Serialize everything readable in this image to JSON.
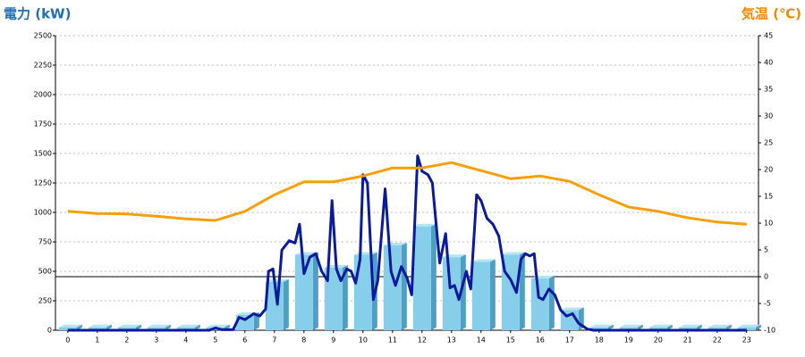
{
  "chart_data": {
    "type": "combo",
    "y_label": "電力 (kW)",
    "y2_label": "気温 (℃)",
    "y_label_color": "#1f6fb5",
    "y2_label_color": "#f08a00",
    "xlim": [
      -0.42,
      23.4
    ],
    "xticks": [
      0,
      1,
      2,
      3,
      4,
      5,
      6,
      7,
      8,
      9,
      10,
      11,
      12,
      13,
      14,
      15,
      16,
      17,
      18,
      19,
      20,
      21,
      22,
      23
    ],
    "ylim": [
      0,
      2500
    ],
    "yticks": [
      0,
      250,
      500,
      750,
      1000,
      1250,
      1500,
      1750,
      2000,
      2250,
      2500
    ],
    "y2lim": [
      -10,
      45
    ],
    "y2ticks": [
      -10,
      -5,
      0,
      5,
      10,
      15,
      20,
      25,
      30,
      35,
      40,
      45
    ],
    "grid": true,
    "series": [
      {
        "type": "bar",
        "color": "#87ceeb",
        "x": [
          0,
          1,
          2,
          3,
          4,
          5,
          6,
          7,
          8,
          9,
          10,
          11,
          12,
          13,
          14,
          15,
          16,
          17,
          18,
          19,
          20,
          21,
          22,
          23
        ],
        "values": [
          25,
          25,
          25,
          25,
          25,
          25,
          130,
          410,
          640,
          530,
          640,
          720,
          880,
          620,
          580,
          640,
          440,
          170,
          25,
          25,
          25,
          25,
          25,
          25
        ]
      },
      {
        "type": "line",
        "color": "#0a1a9a",
        "x": [
          0,
          4.8,
          5.0,
          5.2,
          5.6,
          5.8,
          6.0,
          6.3,
          6.5,
          6.7,
          6.8,
          6.95,
          7.1,
          7.25,
          7.5,
          7.7,
          7.85,
          8.0,
          8.2,
          8.4,
          8.6,
          8.8,
          8.95,
          9.1,
          9.25,
          9.45,
          9.6,
          9.75,
          9.9,
          10.0,
          10.15,
          10.35,
          10.5,
          10.75,
          10.95,
          11.1,
          11.3,
          11.5,
          11.65,
          11.85,
          12.0,
          12.2,
          12.35,
          12.6,
          12.8,
          12.95,
          13.1,
          13.25,
          13.5,
          13.65,
          13.85,
          14.0,
          14.2,
          14.4,
          14.6,
          14.8,
          15.0,
          15.2,
          15.35,
          15.5,
          15.65,
          15.8,
          15.95,
          16.1,
          16.3,
          16.5,
          16.7,
          16.9,
          17.1,
          17.3,
          17.6,
          17.8,
          23
        ],
        "values": [
          0,
          0,
          20,
          5,
          5,
          110,
          90,
          140,
          120,
          180,
          500,
          520,
          220,
          680,
          760,
          740,
          900,
          480,
          620,
          650,
          500,
          420,
          1100,
          520,
          420,
          520,
          500,
          400,
          600,
          1320,
          1250,
          260,
          420,
          1200,
          500,
          380,
          540,
          440,
          300,
          1480,
          1350,
          1320,
          1250,
          570,
          820,
          360,
          380,
          260,
          500,
          350,
          1150,
          1100,
          950,
          900,
          800,
          500,
          430,
          320,
          600,
          650,
          630,
          650,
          280,
          260,
          350,
          300,
          170,
          120,
          140,
          60,
          10,
          0,
          0
        ]
      },
      {
        "type": "line",
        "axis": "y2",
        "color": "#f5a00a",
        "x": [
          0,
          1,
          2,
          3,
          4,
          5,
          6,
          7,
          8,
          9,
          10,
          11,
          12,
          13,
          14,
          15,
          16,
          17,
          18,
          19,
          20,
          21,
          22,
          23
        ],
        "values": [
          12.2,
          11.8,
          11.7,
          11.3,
          10.8,
          10.5,
          12.2,
          15.3,
          17.7,
          17.7,
          18.8,
          20.3,
          20.3,
          21.3,
          19.8,
          18.3,
          18.8,
          17.8,
          15.3,
          13,
          12.2,
          11,
          10.2,
          9.8
        ]
      }
    ]
  }
}
